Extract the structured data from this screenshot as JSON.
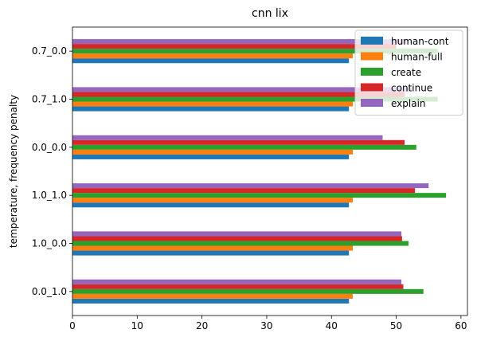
{
  "chart_data": {
    "type": "bar",
    "orientation": "horizontal",
    "title": "cnn lix",
    "xlabel": "",
    "ylabel": "temperature, frequency penalty",
    "xlim": [
      0,
      61
    ],
    "xticks": [
      0,
      10,
      20,
      30,
      40,
      50,
      60
    ],
    "grid": false,
    "legend_position": "top-right",
    "categories": [
      "0.0_1.0",
      "1.0_0.0",
      "1.0_1.0",
      "0.0_0.0",
      "0.7_1.0",
      "0.7_0.0"
    ],
    "series": [
      {
        "name": "human-cont",
        "color": "#1f77b4",
        "values": [
          42.7,
          42.7,
          42.7,
          42.7,
          42.7,
          42.7
        ]
      },
      {
        "name": "human-full",
        "color": "#ff7f0e",
        "values": [
          43.3,
          43.3,
          43.3,
          43.3,
          43.3,
          43.3
        ]
      },
      {
        "name": "create",
        "color": "#2ca02c",
        "values": [
          54.2,
          51.9,
          57.7,
          53.1,
          56.4,
          56.4
        ]
      },
      {
        "name": "continue",
        "color": "#d62728",
        "values": [
          51.1,
          50.9,
          52.9,
          51.3,
          51.3,
          50.0
        ]
      },
      {
        "name": "explain",
        "color": "#9467bd",
        "values": [
          50.8,
          50.8,
          55.0,
          47.9,
          52.5,
          51.6
        ]
      }
    ]
  }
}
